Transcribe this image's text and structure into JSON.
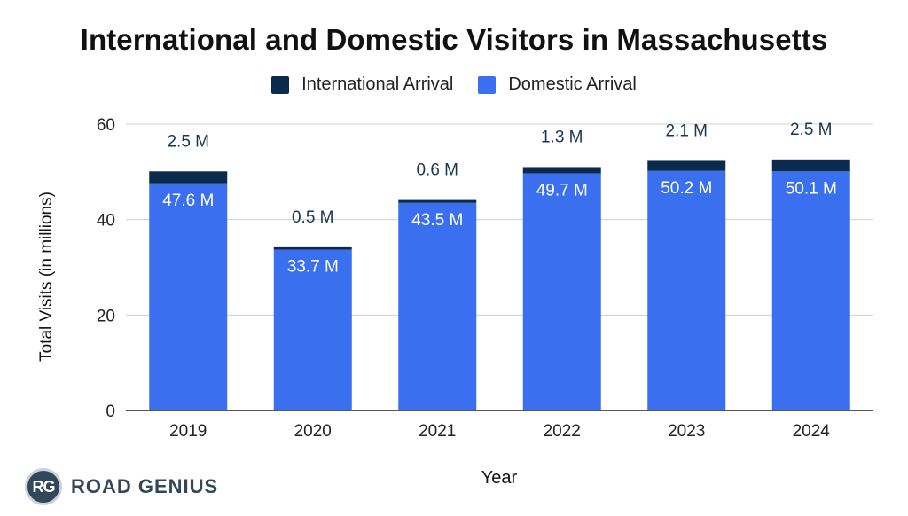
{
  "brand": {
    "badge": "RG",
    "name": "ROAD GENIUS"
  },
  "colors": {
    "international": "#0b2b4e",
    "domestic": "#3a6ff0",
    "grid": "#cfcfcf",
    "axis": "#222222"
  },
  "chart_data": {
    "type": "bar",
    "stacked": true,
    "title": "International and Domestic Visitors in Massachusetts",
    "xlabel": "Year",
    "ylabel": "Total Visits (in millions)",
    "ylim": [
      0,
      60
    ],
    "yticks": [
      0,
      20,
      40,
      60
    ],
    "legend_position": "top-center",
    "grid": true,
    "categories": [
      "2019",
      "2020",
      "2021",
      "2022",
      "2023",
      "2024"
    ],
    "series": [
      {
        "name": "Domestic Arrival",
        "color": "#3a6ff0",
        "values": [
          47.6,
          33.7,
          43.5,
          49.7,
          50.2,
          50.1
        ],
        "labels": [
          "47.6 M",
          "33.7 M",
          "43.5 M",
          "49.7 M",
          "50.2 M",
          "50.1 M"
        ]
      },
      {
        "name": "International Arrival",
        "color": "#0b2b4e",
        "values": [
          2.5,
          0.5,
          0.6,
          1.3,
          2.1,
          2.5
        ],
        "labels": [
          "2.5 M",
          "0.5 M",
          "0.6 M",
          "1.3 M",
          "2.1 M",
          "2.5 M"
        ]
      }
    ]
  }
}
